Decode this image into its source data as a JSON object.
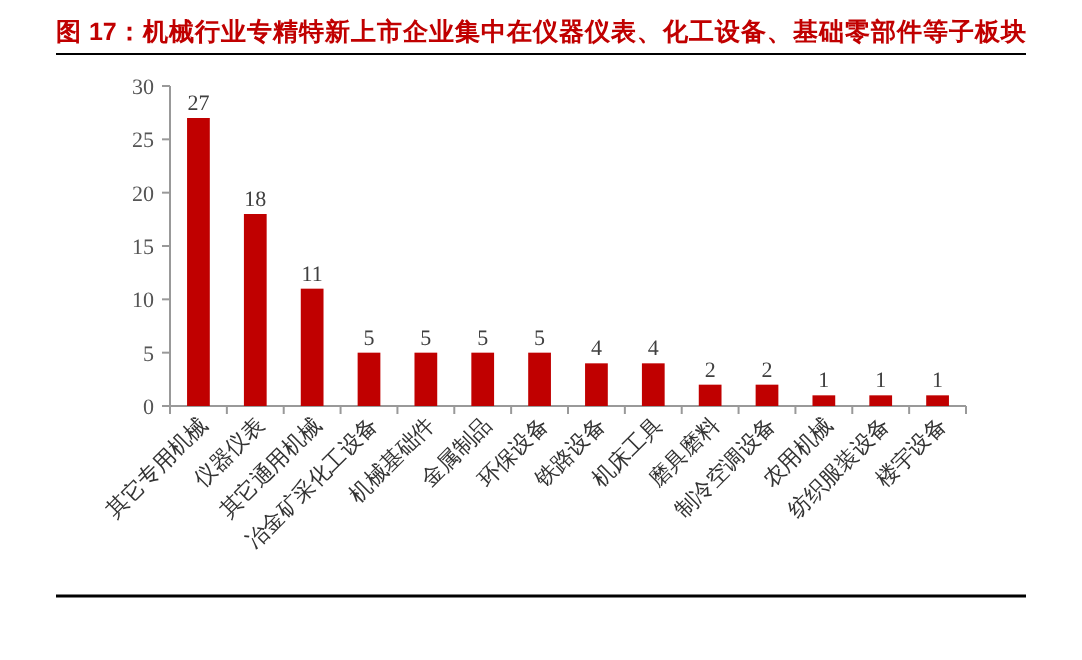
{
  "chart_data": {
    "type": "bar",
    "title": "图 17：机械行业专精特新上市企业集中在仪器仪表、化工设备、基础零部件等子板块",
    "categories": [
      "其它专用机械",
      "仪器仪表",
      "其它通用机械",
      "冶金矿采化工设备",
      "机械基础件",
      "金属制品",
      "环保设备",
      "铁路设备",
      "机床工具",
      "磨具磨料",
      "制冷空调设备",
      "农用机械",
      "纺织服装设备",
      "楼宇设备"
    ],
    "values": [
      27,
      18,
      11,
      5,
      5,
      5,
      5,
      4,
      4,
      2,
      2,
      1,
      1,
      1
    ],
    "color": "#c00000",
    "ylim": [
      0,
      30
    ],
    "yticks": [
      0,
      5,
      10,
      15,
      20,
      25,
      30
    ],
    "data_labels": true
  }
}
